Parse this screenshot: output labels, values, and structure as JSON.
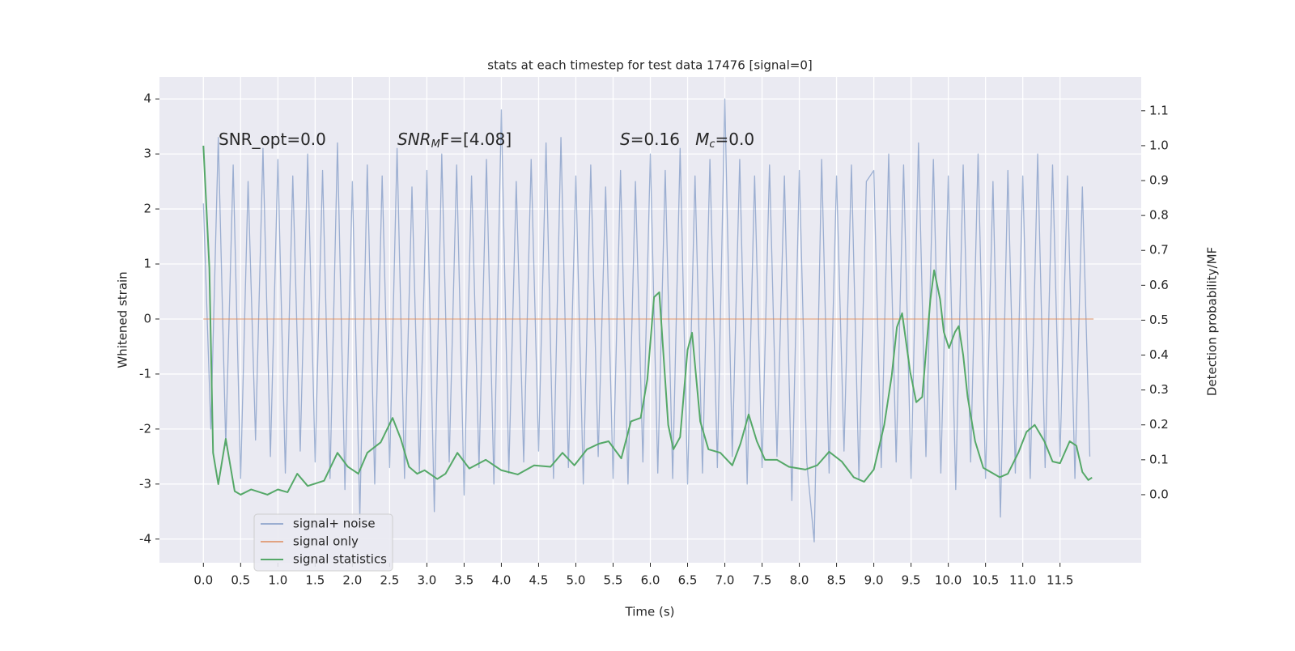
{
  "chart_data": {
    "type": "line",
    "title": "stats at each timestep for test data 17476 [signal=0]",
    "xlabel": "Time (s)",
    "ylabel": "Whitened strain",
    "y2label": "Detection probability/MF",
    "xlim": [
      -0.59,
      12.59
    ],
    "ylim": [
      -4.43,
      4.4
    ],
    "y2lim": [
      -0.195,
      1.197
    ],
    "xticks": [
      {
        "value": 0,
        "label": "0.0"
      },
      0.5,
      {
        "value": 1,
        "label": "1.0"
      },
      1.5,
      {
        "value": 2,
        "label": "2.0"
      },
      2.5,
      {
        "value": 3,
        "label": "3.0"
      },
      3.5,
      {
        "value": 4,
        "label": "4.0"
      },
      4.5,
      {
        "value": 5,
        "label": "5.0"
      },
      5.5,
      {
        "value": 6,
        "label": "6.0"
      },
      6.5,
      {
        "value": 7,
        "label": "7.0"
      },
      7.5,
      {
        "value": 8,
        "label": "8.0"
      },
      8.5,
      {
        "value": 9,
        "label": "9.0"
      },
      9.5,
      {
        "value": 10,
        "label": "10.0"
      },
      10.5,
      {
        "value": 11,
        "label": "11.0"
      },
      11.5
    ],
    "yticks": [
      -4,
      -3,
      -2,
      -1,
      0,
      1,
      2,
      3,
      4
    ],
    "y2ticks": [
      {
        "value": 0,
        "label": "0.0"
      },
      0.1,
      0.2,
      0.3,
      0.4,
      0.5,
      0.6,
      0.7,
      0.8,
      0.9,
      {
        "value": 1,
        "label": "1.0"
      },
      1.1
    ],
    "grid": true,
    "legend": "lower left",
    "annotations": [
      [
        {
          "text": "SNR_opt=0.0"
        }
      ],
      [
        {
          "text": "SNR",
          "italic": true
        },
        {
          "text": "M",
          "italic": true,
          "sub": true
        },
        {
          "text": "F=[4.08]"
        }
      ],
      [
        {
          "text": "S",
          "italic": true
        },
        {
          "text": "=0.16   "
        },
        {
          "text": "M",
          "italic": true
        },
        {
          "text": "c",
          "italic": true,
          "sub": true
        },
        {
          "text": "=0.0"
        }
      ]
    ],
    "series": [
      {
        "name": "signal+ noise",
        "color": "#4c72b0",
        "opacity": 0.5,
        "x": [
          0,
          0.1,
          0.2,
          0.3,
          0.4,
          0.5,
          0.6,
          0.7,
          0.8,
          0.9,
          1,
          1.1,
          1.2,
          1.3,
          1.4,
          1.5,
          1.6,
          1.7,
          1.8,
          1.9,
          2,
          2.1,
          2.2,
          2.3,
          2.4,
          2.5,
          2.6,
          2.7,
          2.8,
          2.9,
          3,
          3.1,
          3.2,
          3.3,
          3.4,
          3.5,
          3.6,
          3.7,
          3.8,
          3.9,
          4,
          4.1,
          4.2,
          4.3,
          4.4,
          4.5,
          4.6,
          4.7,
          4.8,
          4.9,
          5,
          5.1,
          5.2,
          5.3,
          5.4,
          5.5,
          5.6,
          5.7,
          5.8,
          5.9,
          6,
          6.1,
          6.2,
          6.3,
          6.4,
          6.5,
          6.6,
          6.7,
          6.8,
          6.9,
          7,
          7.1,
          7.2,
          7.3,
          7.4,
          7.5,
          7.6,
          7.7,
          7.8,
          7.9,
          8,
          8.1,
          8.2,
          8.3,
          8.4,
          8.5,
          8.6,
          8.7,
          8.8,
          8.9,
          9,
          9.1,
          9.2,
          9.3,
          9.4,
          9.5,
          9.6,
          9.7,
          9.8,
          9.9,
          10,
          10.1,
          10.2,
          10.3,
          10.4,
          10.5,
          10.6,
          10.7,
          10.8,
          10.9,
          11,
          11.1,
          11.2,
          11.3,
          11.4,
          11.5,
          11.6,
          11.7,
          11.8,
          11.9
        ],
        "values": [
          2.1,
          -2.0,
          3.3,
          -2.3,
          2.8,
          -2.9,
          2.5,
          -2.2,
          3.1,
          -2.5,
          2.9,
          -2.8,
          2.6,
          -2.4,
          3.0,
          -2.6,
          2.7,
          -2.9,
          3.2,
          -3.1,
          2.5,
          -3.6,
          2.8,
          -3.0,
          2.6,
          -2.7,
          3.1,
          -2.9,
          2.4,
          -2.8,
          2.7,
          -3.5,
          3.0,
          -2.6,
          2.8,
          -3.2,
          2.6,
          -2.7,
          2.9,
          -3.0,
          3.8,
          -2.8,
          2.5,
          -2.6,
          2.9,
          -2.4,
          3.2,
          -2.9,
          3.3,
          -2.7,
          2.6,
          -3.0,
          2.8,
          -2.5,
          2.4,
          -2.9,
          2.7,
          -3.0,
          2.5,
          -2.6,
          3.0,
          -2.8,
          2.7,
          -2.9,
          3.1,
          -3.0,
          2.6,
          -2.8,
          2.9,
          -2.7,
          4.0,
          -2.5,
          2.9,
          -3.0,
          2.6,
          -2.7,
          2.8,
          -2.5,
          2.6,
          -3.3,
          2.7,
          -2.6,
          -4.05,
          2.9,
          -2.8,
          2.6,
          -2.4,
          2.8,
          -2.9,
          2.5,
          2.7,
          -2.7,
          3.0,
          -2.6,
          2.8,
          -2.9,
          3.2,
          -2.5,
          2.9,
          -2.8,
          2.6,
          -3.1,
          2.8,
          -2.6,
          3.0,
          -2.9,
          2.5,
          -3.6,
          2.7,
          -2.8,
          2.6,
          -2.9,
          3.0,
          -2.7,
          2.8,
          -2.5,
          2.6,
          -2.9,
          2.4,
          -2.5
        ]
      },
      {
        "name": "signal only",
        "color": "#dd8452",
        "opacity": 0.7,
        "x": [
          0,
          11.95
        ],
        "values": [
          0,
          0
        ]
      },
      {
        "name": "signal statistics",
        "color": "#55a868",
        "axis": "y2",
        "x": [
          0,
          0.08,
          0.13,
          0.2,
          0.3,
          0.42,
          0.5,
          0.64,
          0.86,
          1.0,
          1.13,
          1.26,
          1.4,
          1.62,
          1.8,
          1.94,
          2.08,
          2.2,
          2.38,
          2.54,
          2.65,
          2.76,
          2.87,
          2.97,
          3.14,
          3.25,
          3.41,
          3.57,
          3.79,
          4.0,
          4.22,
          4.44,
          4.66,
          4.82,
          4.98,
          5.15,
          5.31,
          5.44,
          5.61,
          5.74,
          5.87,
          5.96,
          6.05,
          6.12,
          6.24,
          6.31,
          6.4,
          6.5,
          6.56,
          6.67,
          6.78,
          6.94,
          7.1,
          7.21,
          7.32,
          7.43,
          7.54,
          7.7,
          7.86,
          8.08,
          8.24,
          8.4,
          8.57,
          8.73,
          8.87,
          9.0,
          9.14,
          9.24,
          9.31,
          9.38,
          9.49,
          9.57,
          9.65,
          9.76,
          9.81,
          9.89,
          9.94,
          10.01,
          10.09,
          10.14,
          10.2,
          10.26,
          10.36,
          10.47,
          10.69,
          10.8,
          10.94,
          11.05,
          11.16,
          11.29,
          11.4,
          11.5,
          11.63,
          11.72,
          11.8,
          11.88,
          11.93
        ],
        "values": [
          1.0,
          0.65,
          0.12,
          0.03,
          0.16,
          0.01,
          0,
          0.015,
          0,
          0.015,
          0.007,
          0.06,
          0.025,
          0.04,
          0.12,
          0.08,
          0.06,
          0.12,
          0.15,
          0.22,
          0.16,
          0.08,
          0.06,
          0.07,
          0.045,
          0.06,
          0.12,
          0.075,
          0.1,
          0.07,
          0.058,
          0.084,
          0.08,
          0.12,
          0.084,
          0.13,
          0.146,
          0.153,
          0.104,
          0.21,
          0.22,
          0.33,
          0.566,
          0.58,
          0.2,
          0.13,
          0.165,
          0.415,
          0.464,
          0.21,
          0.13,
          0.12,
          0.084,
          0.146,
          0.23,
          0.153,
          0.1,
          0.1,
          0.08,
          0.072,
          0.084,
          0.123,
          0.095,
          0.05,
          0.037,
          0.072,
          0.2,
          0.34,
          0.48,
          0.52,
          0.35,
          0.265,
          0.28,
          0.56,
          0.643,
          0.56,
          0.466,
          0.42,
          0.466,
          0.483,
          0.4,
          0.28,
          0.153,
          0.077,
          0.05,
          0.06,
          0.12,
          0.18,
          0.2,
          0.153,
          0.095,
          0.09,
          0.153,
          0.14,
          0.065,
          0.042,
          0.049
        ]
      }
    ]
  }
}
